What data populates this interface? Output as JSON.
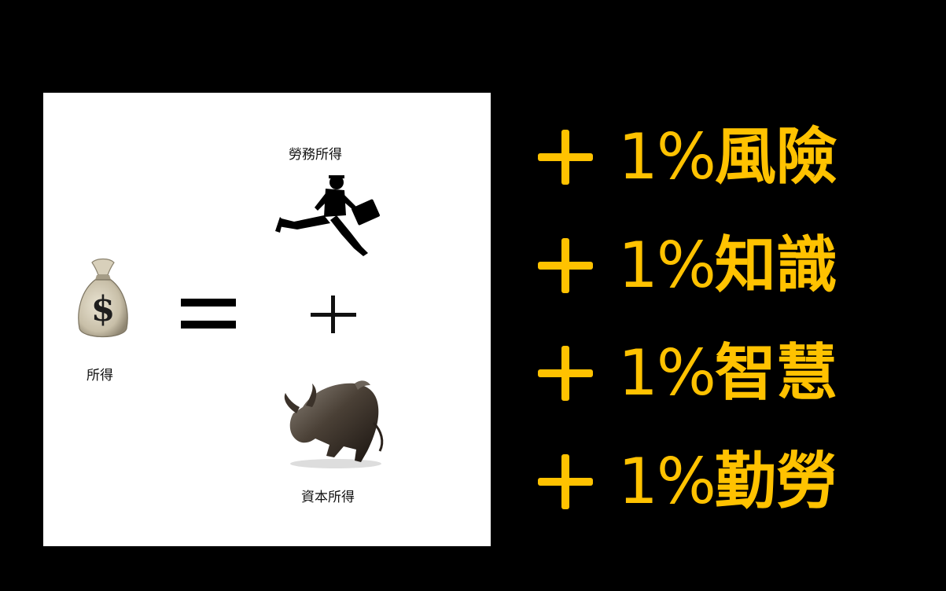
{
  "slide": {
    "income_label": "所得",
    "labor_income_label": "勞務所得",
    "capital_income_label": "資本所得",
    "icons": {
      "money_bag": "money-bag-icon",
      "equals": "equals-icon",
      "plus": "plus-icon",
      "runner": "businessman-running-icon",
      "bull": "bull-icon"
    }
  },
  "list": {
    "accent_color": "#ffc200",
    "items": [
      {
        "percent": "1%",
        "word": "風險"
      },
      {
        "percent": "1%",
        "word": "知識"
      },
      {
        "percent": "1%",
        "word": "智慧"
      },
      {
        "percent": "1%",
        "word": "勤勞"
      }
    ]
  }
}
